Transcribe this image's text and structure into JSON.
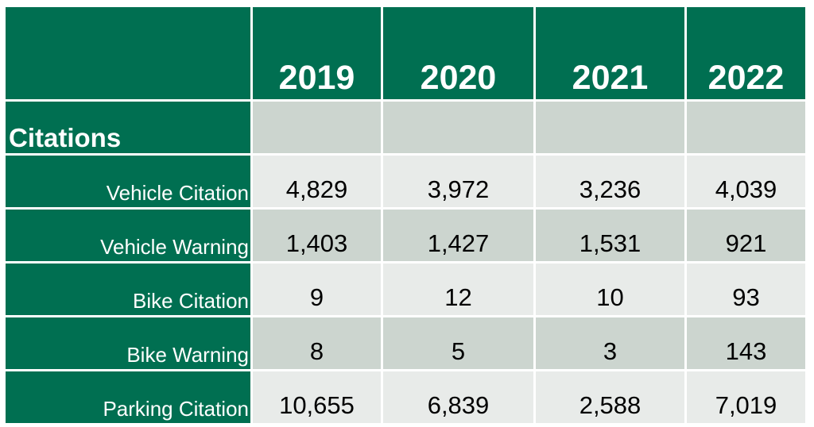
{
  "table": {
    "years": [
      "2019",
      "2020",
      "2021",
      "2022"
    ],
    "section_label": "Citations",
    "rows": [
      {
        "label": "Vehicle Citation",
        "values": [
          "4,829",
          "3,972",
          "3,236",
          "4,039"
        ]
      },
      {
        "label": "Vehicle Warning",
        "values": [
          "1,403",
          "1,427",
          "1,531",
          "921"
        ]
      },
      {
        "label": "Bike Citation",
        "values": [
          "9",
          "12",
          "10",
          "93"
        ]
      },
      {
        "label": "Bike Warning",
        "values": [
          "8",
          "5",
          "3",
          "143"
        ]
      },
      {
        "label": "Parking Citation",
        "values": [
          "10,655",
          "6,839",
          "2,588",
          "7,019"
        ]
      }
    ]
  },
  "colors": {
    "header_green": "#006f51",
    "band_dark": "#ccd5cf",
    "band_light": "#e8ebe9"
  }
}
